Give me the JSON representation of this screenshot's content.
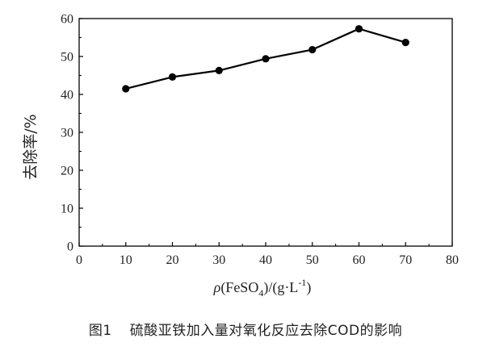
{
  "chart_data": {
    "type": "line",
    "x": [
      10,
      20,
      30,
      40,
      50,
      60,
      70
    ],
    "series": [
      {
        "values": [
          41.5,
          44.6,
          46.3,
          49.4,
          51.8,
          57.3,
          53.7
        ]
      }
    ],
    "xlim": [
      0,
      80
    ],
    "ylim": [
      0,
      60
    ],
    "xticks": [
      0,
      10,
      20,
      30,
      40,
      50,
      60,
      70,
      80
    ],
    "yticks": [
      0,
      10,
      20,
      30,
      40,
      50,
      60
    ],
    "ylabel": "去除率/%",
    "xlabel": {
      "rho": "ρ",
      "main": "(FeSO",
      "sub": "4",
      "mid": ")/(g·L",
      "sup": "-1",
      "end": ")"
    },
    "grid": false,
    "marker": "filled-circle",
    "line_color": "#000000"
  },
  "caption": {
    "number": "图1",
    "text": "硫酸亚铁加入量对氧化反应去除COD的影响"
  }
}
